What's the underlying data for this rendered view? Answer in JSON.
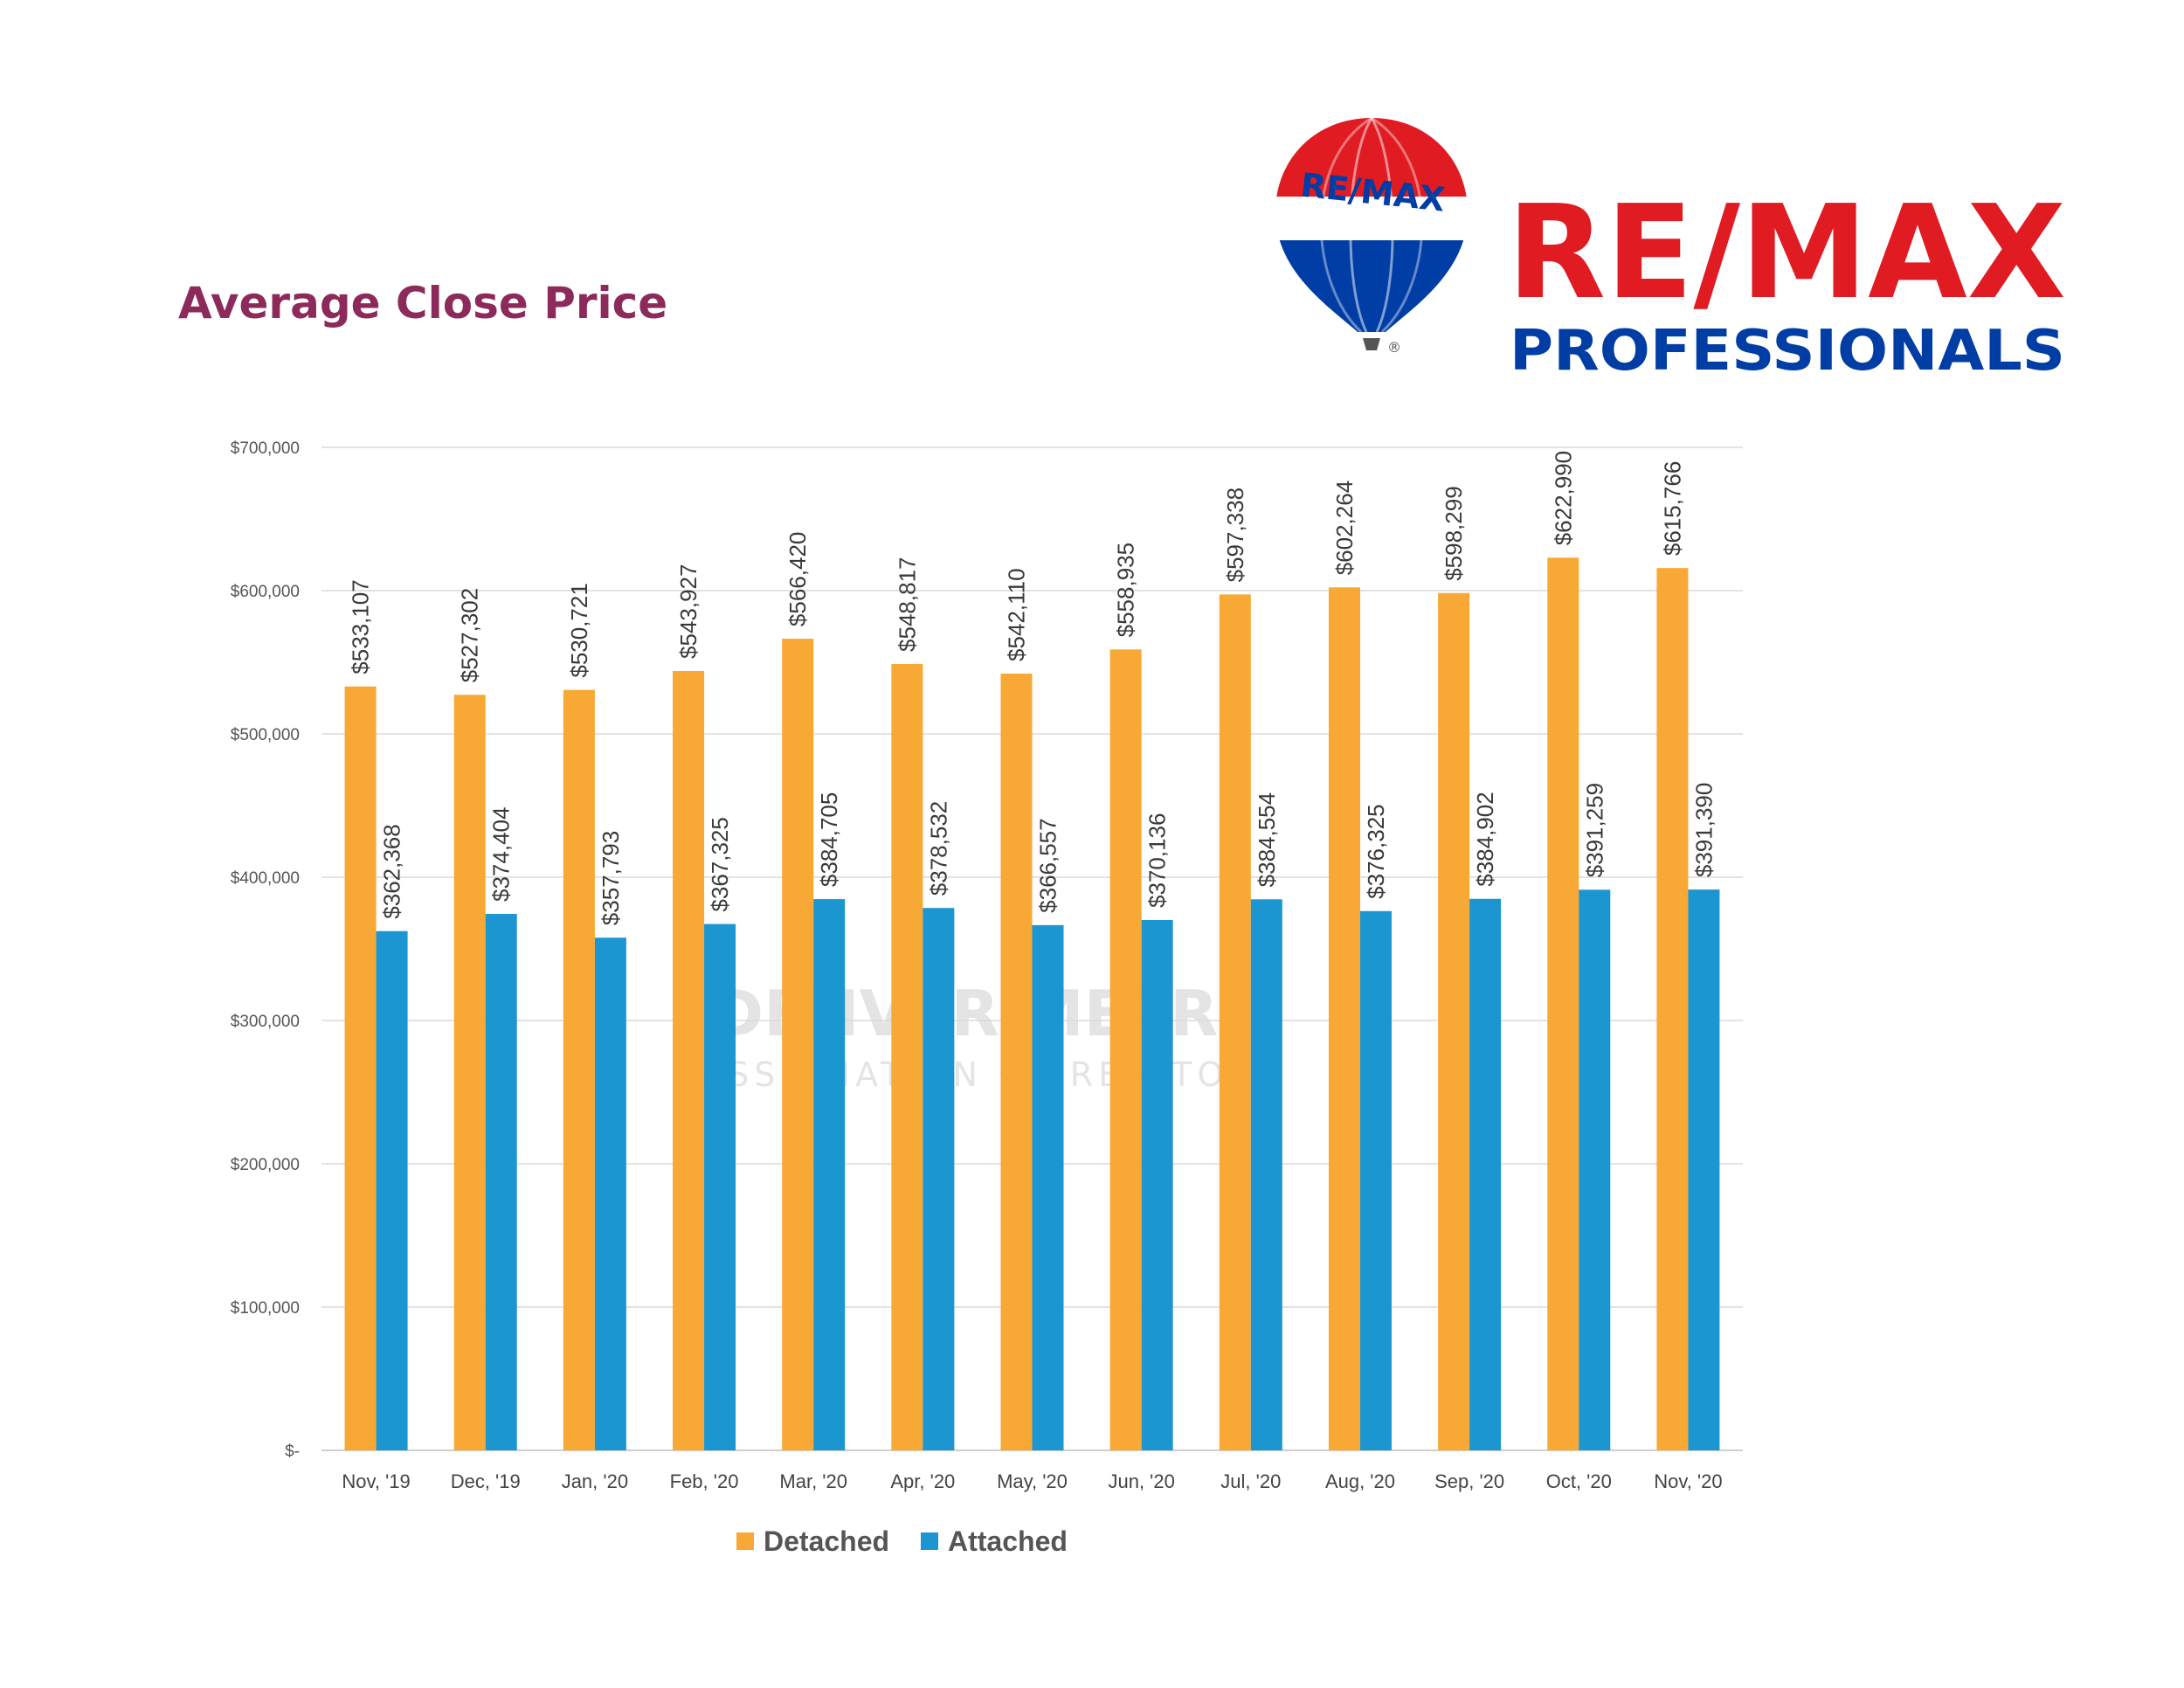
{
  "title": "Average Close Price",
  "logo": {
    "balloon_text": "RE/MAX",
    "brand": "RE/MAX",
    "subtitle": "PROFESSIONALS",
    "registered": "®",
    "colors": {
      "red": "#e11b22",
      "blue": "#003da5"
    }
  },
  "watermark": {
    "line1": "DENVER METRO",
    "line2": "ASSOCIATION OF REALTORS"
  },
  "chart_data": {
    "type": "bar",
    "categories": [
      "Nov, '19",
      "Dec, '19",
      "Jan, '20",
      "Feb, '20",
      "Mar, '20",
      "Apr, '20",
      "May, '20",
      "Jun, '20",
      "Jul, '20",
      "Aug, '20",
      "Sep, '20",
      "Oct, '20",
      "Nov, '20"
    ],
    "series": [
      {
        "name": "Detached",
        "color": "#f8a834",
        "values": [
          533107,
          527302,
          530721,
          543927,
          566420,
          548817,
          542110,
          558935,
          597338,
          602264,
          598299,
          622990,
          615766
        ],
        "labels": [
          "$533,107",
          "$527,302",
          "$530,721",
          "$543,927",
          "$566,420",
          "$548,817",
          "$542,110",
          "$558,935",
          "$597,338",
          "$602,264",
          "$598,299",
          "$622,990",
          "$615,766"
        ]
      },
      {
        "name": "Attached",
        "color": "#1c96d0",
        "values": [
          362368,
          374404,
          357793,
          367325,
          384705,
          378532,
          366557,
          370136,
          384554,
          376325,
          384902,
          391259,
          391390
        ],
        "labels": [
          "$362,368",
          "$374,404",
          "$357,793",
          "$367,325",
          "$384,705",
          "$378,532",
          "$366,557",
          "$370,136",
          "$384,554",
          "$376,325",
          "$384,902",
          "$391,259",
          "$391,390"
        ]
      }
    ],
    "ylim": [
      0,
      700000
    ],
    "yticks": [
      0,
      100000,
      200000,
      300000,
      400000,
      500000,
      600000,
      700000
    ],
    "ytick_labels": [
      "$-",
      "$100,000",
      "$200,000",
      "$300,000",
      "$400,000",
      "$500,000",
      "$600,000",
      "$700,000"
    ],
    "grid": true,
    "legend_position": "bottom"
  }
}
